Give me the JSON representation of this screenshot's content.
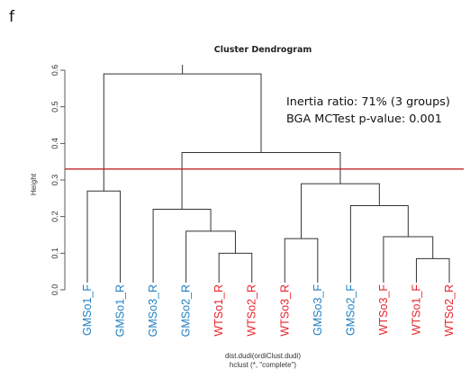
{
  "panel_label": "f",
  "annotations": {
    "line1": "Inertia ratio: 71% (3 groups)",
    "line2": "BGA MCTest p-value: 0.001"
  },
  "colors": {
    "group_blue": "#1f7fc2",
    "group_red": "#e8222a",
    "cut_line": "#c0282e",
    "branch": "#333333"
  },
  "chart_data": {
    "type": "dendrogram",
    "title": "Cluster Dendrogram",
    "ylabel": "Height",
    "xlabel": "dist.dudi(ordiClust.dudi)",
    "sublabel": "hclust (*, \"complete\")",
    "ylim": [
      0,
      0.6
    ],
    "yticks": [
      "0.0",
      "0.1",
      "0.2",
      "0.3",
      "0.4",
      "0.5",
      "0.6"
    ],
    "cut_height": 0.33,
    "leaves": [
      {
        "label": "GMSo1_F",
        "color": "blue"
      },
      {
        "label": "GMSo1_R",
        "color": "blue"
      },
      {
        "label": "GMSo3_R",
        "color": "blue"
      },
      {
        "label": "GMSo2_R",
        "color": "blue"
      },
      {
        "label": "WTSo1_R",
        "color": "red"
      },
      {
        "label": "WTSo2_R",
        "color": "red"
      },
      {
        "label": "WTSo3_R",
        "color": "red"
      },
      {
        "label": "GMSo3_F",
        "color": "blue"
      },
      {
        "label": "GMSo2_F",
        "color": "blue"
      },
      {
        "label": "WTSo3_F",
        "color": "red"
      },
      {
        "label": "WTSo1_F",
        "color": "red"
      },
      {
        "label": "WTSo2_R",
        "color": "red"
      }
    ],
    "merges": [
      {
        "a": 0,
        "b": 1,
        "height": 0.27
      },
      {
        "a": 4,
        "b": 5,
        "height": 0.1
      },
      {
        "a": 3,
        "b": 13,
        "height": 0.16
      },
      {
        "a": 2,
        "b": 14,
        "height": 0.22
      },
      {
        "a": 10,
        "b": 11,
        "height": 0.085
      },
      {
        "a": 9,
        "b": 16,
        "height": 0.145
      },
      {
        "a": 8,
        "b": 17,
        "height": 0.23
      },
      {
        "a": 6,
        "b": 7,
        "height": 0.14
      },
      {
        "a": 19,
        "b": 18,
        "height": 0.29
      },
      {
        "a": 15,
        "b": 20,
        "height": 0.375
      },
      {
        "a": 12,
        "b": 21,
        "height": 0.59
      }
    ]
  }
}
